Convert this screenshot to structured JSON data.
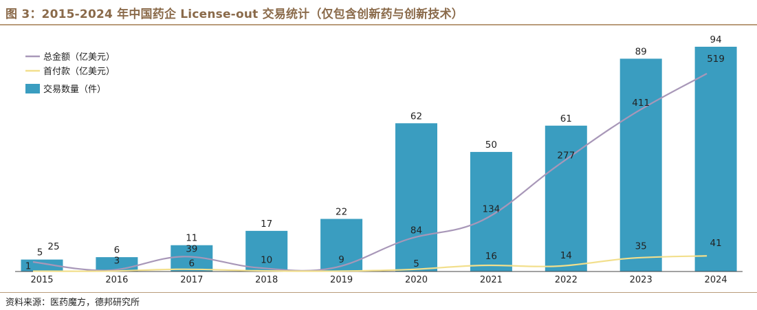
{
  "title": "图 3：2015-2024 年中国药企 License-out 交易统计（仅包含创新药与创新技术）",
  "source": "资料来源：医药魔方，德邦研究所",
  "colors": {
    "bar": "#3a9dc0",
    "total": "#a897b8",
    "upfront": "#f2df8c",
    "rule": "#b99b7a",
    "title": "#8a6a4a"
  },
  "chart_data": {
    "type": "bar",
    "categories": [
      "2015",
      "2016",
      "2017",
      "2018",
      "2019",
      "2020",
      "2021",
      "2022",
      "2023",
      "2024"
    ],
    "series": [
      {
        "name": "交易数量（件）",
        "type": "bar",
        "values": [
          5,
          6,
          11,
          17,
          22,
          62,
          50,
          61,
          89,
          94
        ]
      },
      {
        "name": "总金额（亿美元）",
        "type": "line",
        "values": [
          25,
          3,
          39,
          10,
          9,
          84,
          134,
          277,
          411,
          519
        ]
      },
      {
        "name": "首付款（亿美元）",
        "type": "line",
        "values": [
          1,
          1,
          6,
          2,
          1,
          5,
          16,
          14,
          35,
          41
        ]
      }
    ],
    "data_labels": {
      "bars": [
        "5",
        "6",
        "11",
        "17",
        "22",
        "62",
        "50",
        "61",
        "89",
        "94"
      ],
      "total": [
        "25",
        "3",
        "39",
        "10",
        "9",
        "84",
        "134",
        "277",
        "411",
        "519"
      ],
      "upfront": [
        "1",
        "",
        "6",
        "",
        "",
        "5",
        "16",
        "14",
        "35",
        "41"
      ]
    },
    "legend_position": "top-left",
    "grid": false
  }
}
